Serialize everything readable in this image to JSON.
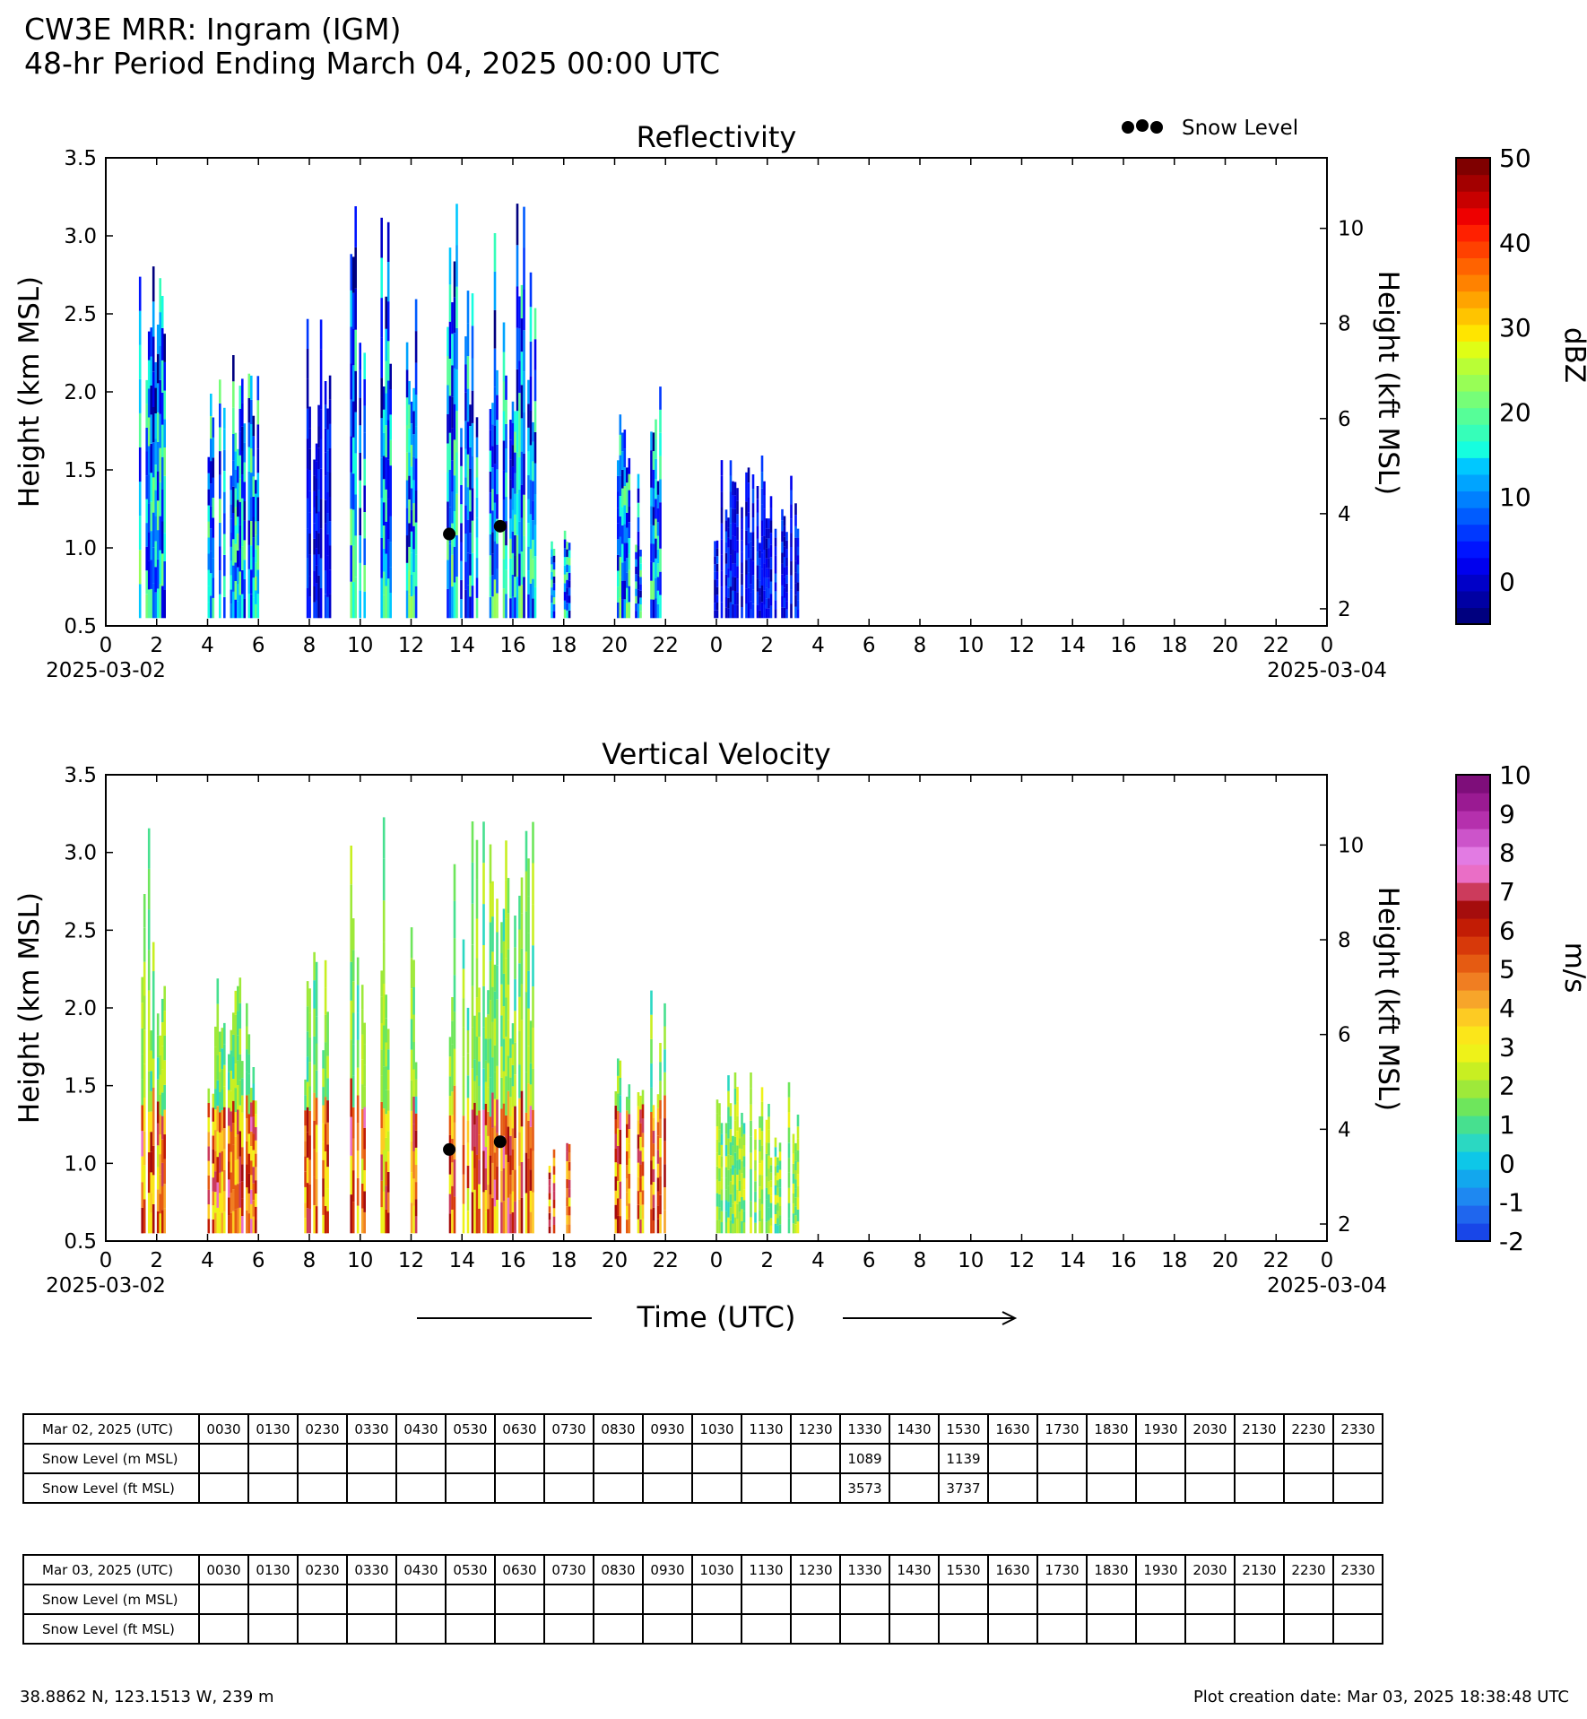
{
  "header": {
    "line1": "CW3E MRR: Ingram (IGM)",
    "line2": "48-hr Period Ending March 04, 2025 00:00 UTC"
  },
  "legend": {
    "label": "Snow Level",
    "marker_color": "#000000"
  },
  "xaxis": {
    "label": "Time (UTC)",
    "ticks": [
      "0",
      "2",
      "4",
      "6",
      "8",
      "10",
      "12",
      "14",
      "16",
      "18",
      "20",
      "22",
      "0",
      "2",
      "4",
      "6",
      "8",
      "10",
      "12",
      "14",
      "16",
      "18",
      "20",
      "22",
      "0"
    ],
    "tick_hours": [
      0,
      2,
      4,
      6,
      8,
      10,
      12,
      14,
      16,
      18,
      20,
      22,
      24,
      26,
      28,
      30,
      32,
      34,
      36,
      38,
      40,
      42,
      44,
      46,
      48
    ],
    "start_date": "2025-03-02",
    "end_date": "2025-03-04"
  },
  "chart_data": [
    {
      "type": "heatmap",
      "title": "Reflectivity",
      "ylabel": "Height (km MSL)",
      "y2label": "Height (kft MSL)",
      "ylim": [
        0.5,
        3.5
      ],
      "yticks": [
        "0.5",
        "1.0",
        "1.5",
        "2.0",
        "2.5",
        "3.0",
        "3.5"
      ],
      "y2ticks": [
        "2",
        "4",
        "6",
        "8",
        "10"
      ],
      "xlim_hours": [
        0,
        48
      ],
      "colorbar": {
        "label": "dBZ",
        "ticks": [
          "50",
          "40",
          "30",
          "20",
          "10",
          "0"
        ],
        "range": [
          -5,
          50
        ],
        "colors": [
          "#00007f",
          "#0000a3",
          "#0000c8",
          "#0000ee",
          "#0014ff",
          "#0038ff",
          "#005cff",
          "#0080ff",
          "#00a4ff",
          "#00c8ff",
          "#16fedf",
          "#36feb9",
          "#56fe98",
          "#76fe78",
          "#98fe56",
          "#b9fe36",
          "#dffe16",
          "#ffe500",
          "#ffc400",
          "#ffa400",
          "#ff8200",
          "#ff6300",
          "#ff4100",
          "#ff2000",
          "#ee0000",
          "#c80000",
          "#a30000",
          "#7f0000"
        ]
      },
      "echo_periods_hours": [
        [
          1.3,
          2.3
        ],
        [
          4.0,
          6.0
        ],
        [
          7.8,
          8.8
        ],
        [
          9.6,
          10.2
        ],
        [
          10.8,
          11.2
        ],
        [
          11.8,
          12.2
        ],
        [
          13.4,
          16.9
        ],
        [
          17.4,
          17.6
        ],
        [
          18.0,
          18.2
        ],
        [
          20.0,
          20.6
        ],
        [
          20.8,
          21.1
        ],
        [
          21.4,
          22.0
        ],
        [
          23.9,
          27.2
        ]
      ],
      "snow_level": [
        {
          "hour": 13.5,
          "height_km": 1.089
        },
        {
          "hour": 15.5,
          "height_km": 1.139
        }
      ]
    },
    {
      "type": "heatmap",
      "title": "Vertical Velocity",
      "ylabel": "Height (km MSL)",
      "y2label": "Height (kft MSL)",
      "ylim": [
        0.5,
        3.5
      ],
      "yticks": [
        "0.5",
        "1.0",
        "1.5",
        "2.0",
        "2.5",
        "3.0",
        "3.5"
      ],
      "y2ticks": [
        "2",
        "4",
        "6",
        "8",
        "10"
      ],
      "xlim_hours": [
        0,
        48
      ],
      "colorbar": {
        "label": "m/s",
        "ticks": [
          "10",
          "9",
          "8",
          "7",
          "6",
          "5",
          "4",
          "3",
          "2",
          "1",
          "0",
          "-1",
          "-2"
        ],
        "range": [
          -2,
          10
        ],
        "colors": [
          "#1846e8",
          "#1f66ee",
          "#1e88f1",
          "#12a7ee",
          "#0ec7e8",
          "#2bd8c2",
          "#47e08f",
          "#6ee65c",
          "#9ee93a",
          "#c8ef22",
          "#eef219",
          "#fbe61a",
          "#fdcb23",
          "#f7a52a",
          "#f07e22",
          "#e55b12",
          "#d7390a",
          "#c21c05",
          "#a50d0d",
          "#cc3b5c",
          "#ea6ec6",
          "#e27be3",
          "#cc54ca",
          "#b530ad",
          "#9a1a92",
          "#7e0e7a"
        ]
      },
      "snow_level": [
        {
          "hour": 13.5,
          "height_km": 1.089
        },
        {
          "hour": 15.5,
          "height_km": 1.139
        }
      ]
    }
  ],
  "tables": [
    {
      "date_label": "Mar 02, 2025 (UTC)",
      "times": [
        "0030",
        "0130",
        "0230",
        "0330",
        "0430",
        "0530",
        "0630",
        "0730",
        "0830",
        "0930",
        "1030",
        "1130",
        "1230",
        "1330",
        "1430",
        "1530",
        "1630",
        "1730",
        "1830",
        "1930",
        "2030",
        "2130",
        "2230",
        "2330"
      ],
      "rows": [
        {
          "label": "Snow Level (m MSL)",
          "values": [
            "",
            "",
            "",
            "",
            "",
            "",
            "",
            "",
            "",
            "",
            "",
            "",
            "",
            "1089",
            "",
            "1139",
            "",
            "",
            "",
            "",
            "",
            "",
            "",
            ""
          ]
        },
        {
          "label": "Snow Level (ft MSL)",
          "values": [
            "",
            "",
            "",
            "",
            "",
            "",
            "",
            "",
            "",
            "",
            "",
            "",
            "",
            "3573",
            "",
            "3737",
            "",
            "",
            "",
            "",
            "",
            "",
            "",
            ""
          ]
        }
      ]
    },
    {
      "date_label": "Mar 03, 2025 (UTC)",
      "times": [
        "0030",
        "0130",
        "0230",
        "0330",
        "0430",
        "0530",
        "0630",
        "0730",
        "0830",
        "0930",
        "1030",
        "1130",
        "1230",
        "1330",
        "1430",
        "1530",
        "1630",
        "1730",
        "1830",
        "1930",
        "2030",
        "2130",
        "2230",
        "2330"
      ],
      "rows": [
        {
          "label": "Snow Level (m MSL)",
          "values": [
            "",
            "",
            "",
            "",
            "",
            "",
            "",
            "",
            "",
            "",
            "",
            "",
            "",
            "",
            "",
            "",
            "",
            "",
            "",
            "",
            "",
            "",
            "",
            ""
          ]
        },
        {
          "label": "Snow Level (ft MSL)",
          "values": [
            "",
            "",
            "",
            "",
            "",
            "",
            "",
            "",
            "",
            "",
            "",
            "",
            "",
            "",
            "",
            "",
            "",
            "",
            "",
            "",
            "",
            "",
            "",
            ""
          ]
        }
      ]
    }
  ],
  "footer": {
    "location": "38.8862 N, 123.1513 W, 239 m",
    "creation": "Plot creation date: Mar 03, 2025 18:38:48 UTC"
  }
}
